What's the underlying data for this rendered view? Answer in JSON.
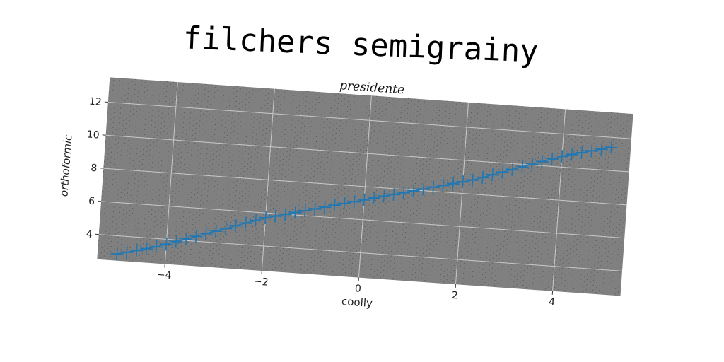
{
  "title": "filchers semigrainy",
  "chart_data": {
    "type": "line",
    "subtitle": "presidente",
    "xlabel": "coolly",
    "ylabel": "orthoformic",
    "xlim": [
      -5.4,
      5.4
    ],
    "ylim": [
      2.5,
      13.5
    ],
    "xticks": [
      -4,
      -2,
      0,
      2,
      4
    ],
    "yticks": [
      4,
      6,
      8,
      10,
      12
    ],
    "grid": true,
    "marker": "+",
    "series_color": "#1f77b4",
    "background_color": "#808080",
    "x": [
      -5.0,
      -4.8,
      -4.6,
      -4.4,
      -4.2,
      -4.0,
      -3.8,
      -3.6,
      -3.4,
      -3.2,
      -3.0,
      -2.8,
      -2.6,
      -2.4,
      -2.2,
      -2.0,
      -1.8,
      -1.6,
      -1.4,
      -1.2,
      -1.0,
      -0.8,
      -0.6,
      -0.4,
      -0.2,
      0.0,
      0.2,
      0.4,
      0.6,
      0.8,
      1.0,
      1.2,
      1.4,
      1.6,
      1.8,
      2.0,
      2.2,
      2.4,
      2.6,
      2.8,
      3.0,
      3.2,
      3.4,
      3.6,
      3.8,
      4.0,
      4.2,
      4.4,
      4.6,
      4.8,
      5.0
    ],
    "y": [
      2.9,
      3.05,
      3.2,
      3.35,
      3.5,
      3.7,
      3.9,
      4.1,
      4.3,
      4.5,
      4.7,
      4.9,
      5.1,
      5.3,
      5.5,
      5.7,
      5.85,
      6.0,
      6.15,
      6.3,
      6.45,
      6.6,
      6.75,
      6.9,
      7.05,
      7.2,
      7.35,
      7.5,
      7.65,
      7.8,
      7.95,
      8.1,
      8.25,
      8.4,
      8.55,
      8.7,
      8.85,
      9.05,
      9.25,
      9.45,
      9.65,
      9.85,
      10.05,
      10.25,
      10.45,
      10.65,
      10.8,
      10.95,
      11.1,
      11.25,
      11.4
    ]
  }
}
